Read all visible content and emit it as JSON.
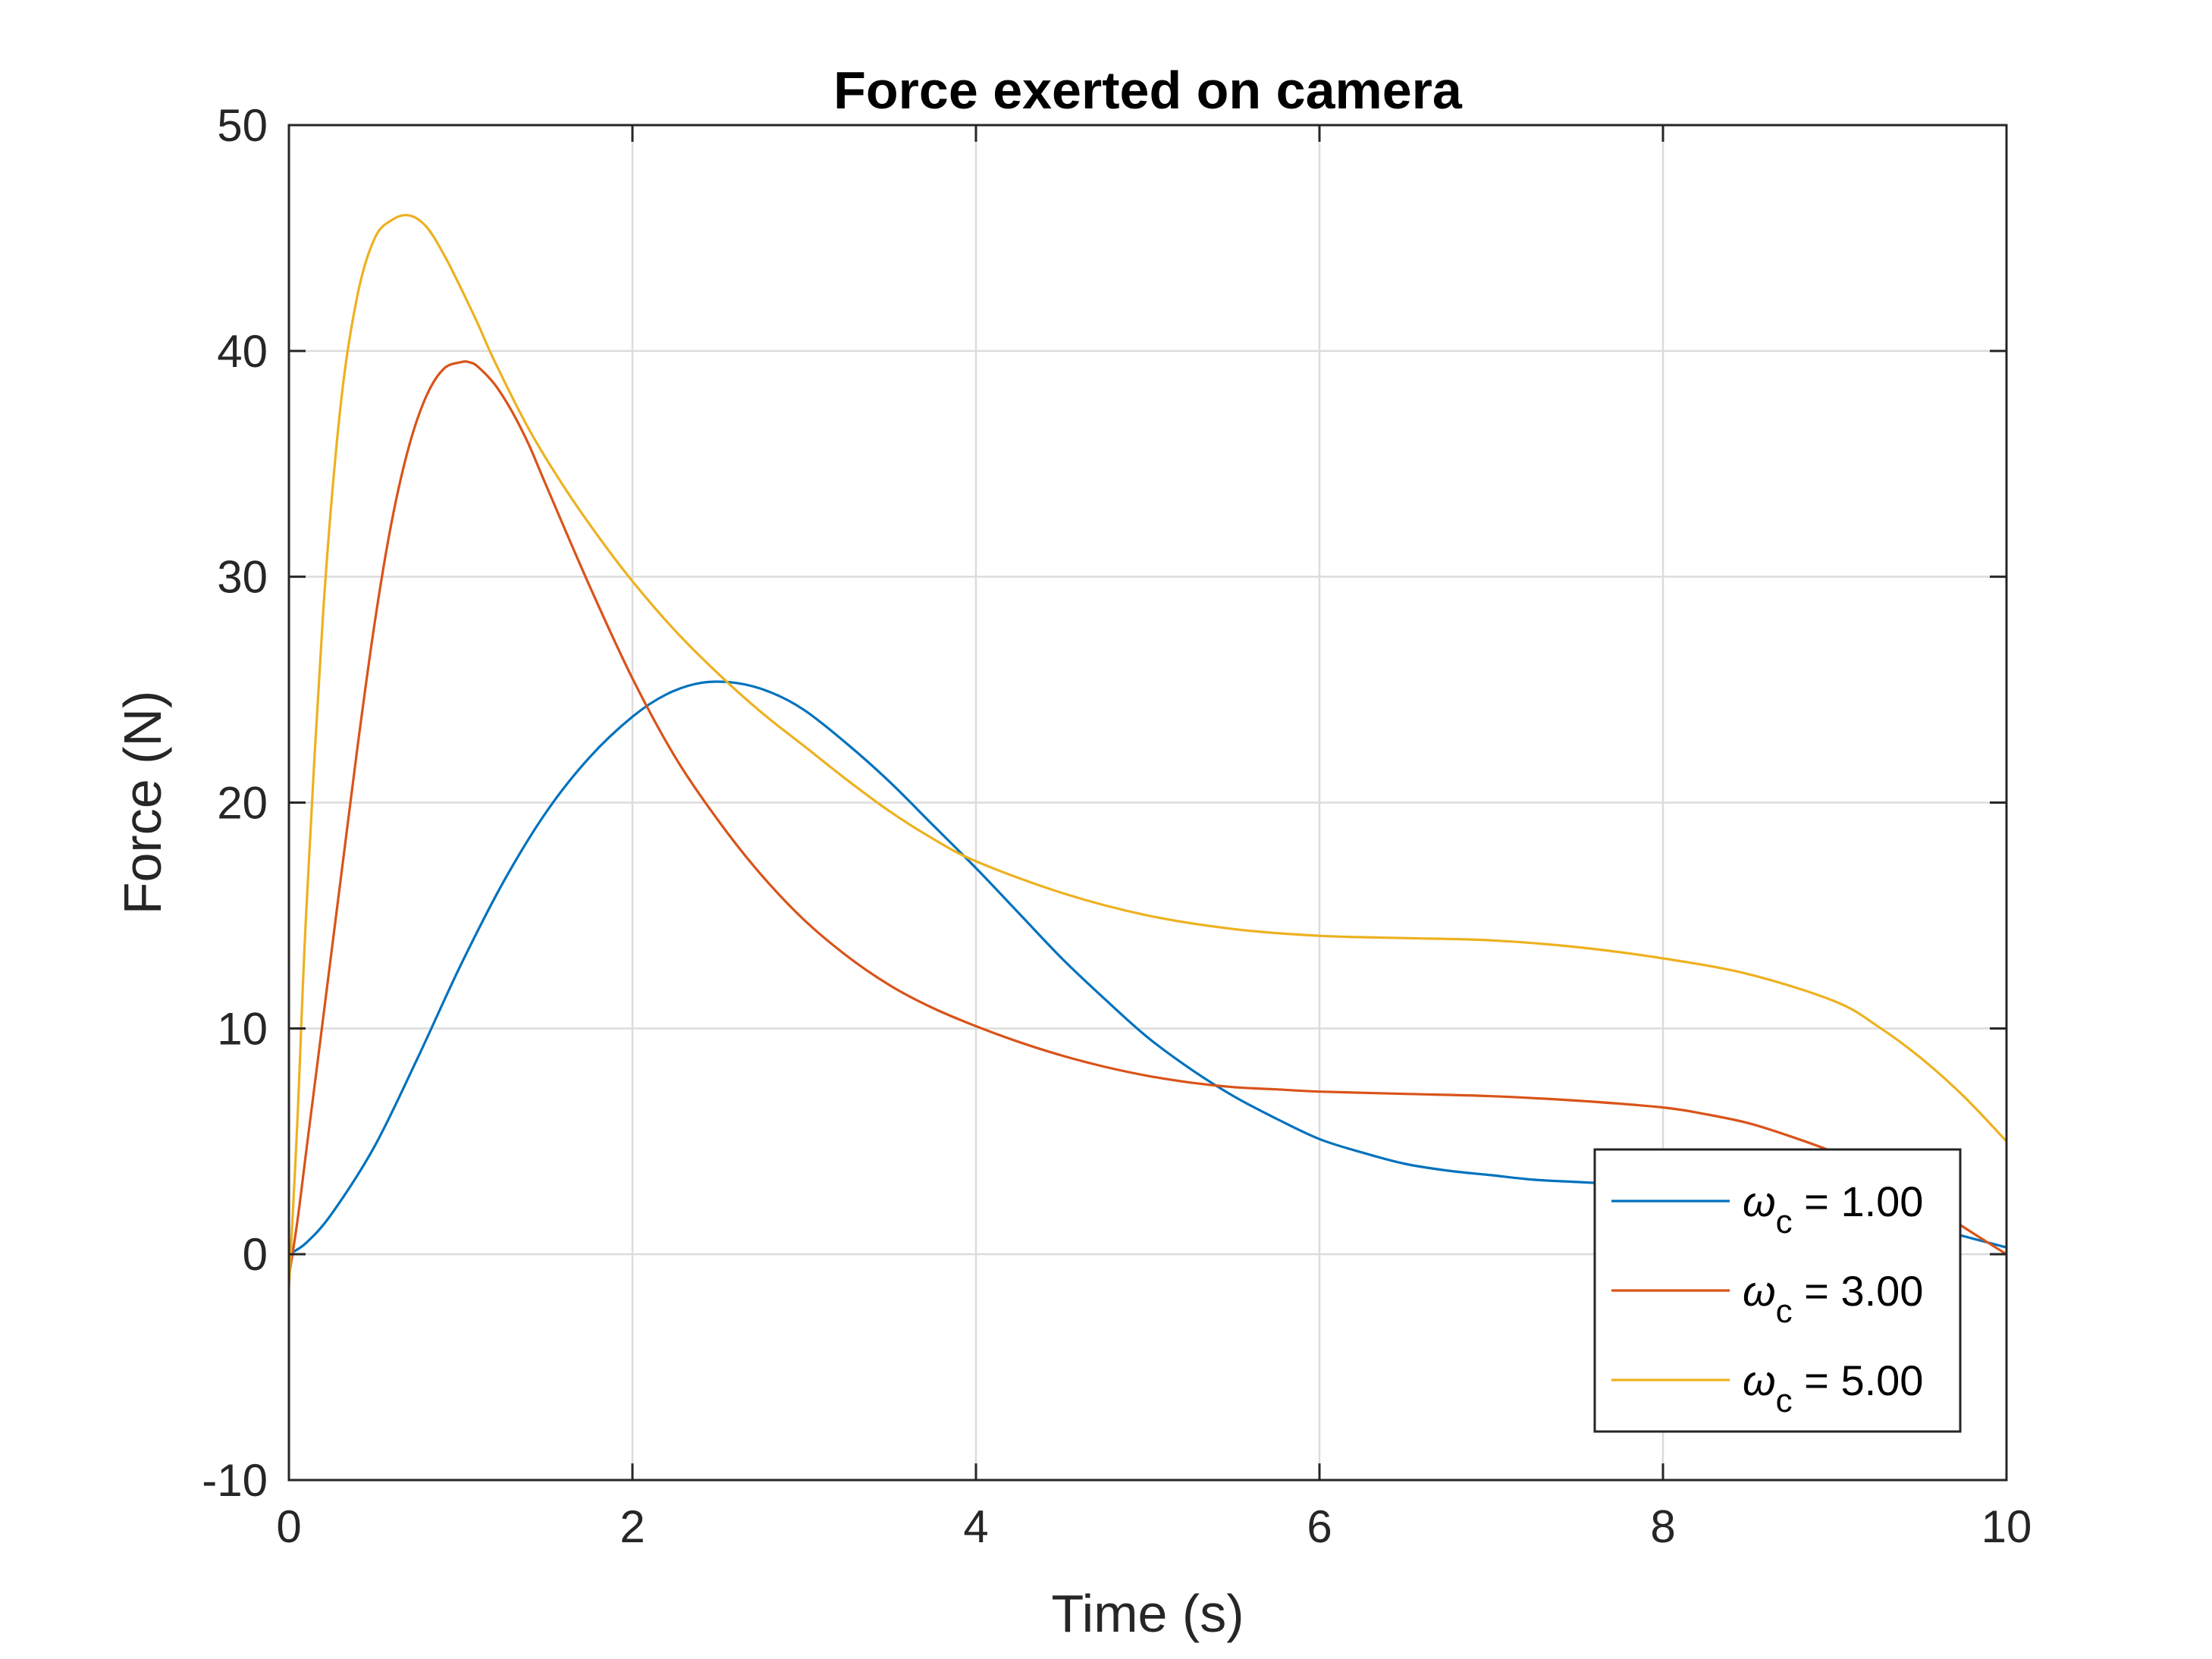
{
  "chart_data": {
    "type": "line",
    "title": "Force exerted on camera",
    "xlabel": "Time (s)",
    "ylabel": "Force (N)",
    "xlim": [
      0,
      10
    ],
    "ylim": [
      -10,
      50
    ],
    "xticks": [
      0,
      2,
      4,
      6,
      8,
      10
    ],
    "yticks": [
      -10,
      0,
      10,
      20,
      30,
      40,
      50
    ],
    "grid": true,
    "legend_position": "bottom-right",
    "series": [
      {
        "name": "ωc = 1.00",
        "legend_symbol": "ω",
        "legend_subscript": "c",
        "legend_value": " = 1.00",
        "color": "#0072BD",
        "x": [
          0,
          0.1,
          0.25,
          0.5,
          0.75,
          1.0,
          1.25,
          1.5,
          1.75,
          2.0,
          2.2,
          2.4,
          2.6,
          2.8,
          3.0,
          3.25,
          3.5,
          3.75,
          4.0,
          4.25,
          4.5,
          4.75,
          5.0,
          5.25,
          5.5,
          5.75,
          6.0,
          6.25,
          6.5,
          6.75,
          7.0,
          7.25,
          7.5,
          7.75,
          8.0,
          8.25,
          8.5,
          8.75,
          9.0,
          9.25,
          9.5,
          9.75,
          10.0
        ],
        "y": [
          0,
          0.5,
          1.8,
          4.8,
          8.7,
          12.8,
          16.5,
          19.6,
          22.0,
          23.8,
          24.8,
          25.3,
          25.3,
          24.9,
          24.1,
          22.6,
          20.9,
          19.0,
          17.1,
          15.1,
          13.1,
          11.3,
          9.6,
          8.2,
          7.0,
          6.0,
          5.1,
          4.5,
          4.0,
          3.7,
          3.5,
          3.3,
          3.2,
          3.1,
          3.0,
          2.9,
          2.7,
          2.4,
          2.1,
          1.7,
          1.3,
          0.8,
          0.3
        ]
      },
      {
        "name": "ωc = 3.00",
        "legend_symbol": "ω",
        "legend_subscript": "c",
        "legend_value": " = 3.00",
        "color": "#D95319",
        "x": [
          0,
          0.05,
          0.1,
          0.2,
          0.3,
          0.4,
          0.5,
          0.6,
          0.7,
          0.8,
          0.9,
          1.0,
          1.05,
          1.1,
          1.2,
          1.3,
          1.4,
          1.5,
          1.75,
          2.0,
          2.25,
          2.5,
          2.75,
          3.0,
          3.25,
          3.5,
          3.75,
          4.0,
          4.25,
          4.5,
          4.75,
          5.0,
          5.25,
          5.5,
          5.75,
          6.0,
          6.5,
          7.0,
          7.5,
          8.0,
          8.25,
          8.5,
          8.75,
          9.0,
          9.25,
          9.5,
          9.75,
          10.0
        ],
        "y": [
          -1,
          1.5,
          4.5,
          10.5,
          16.5,
          22.5,
          28.0,
          32.5,
          35.8,
          38.0,
          39.2,
          39.5,
          39.5,
          39.3,
          38.5,
          37.3,
          35.8,
          34.0,
          29.6,
          25.5,
          22.0,
          19.2,
          16.8,
          14.8,
          13.2,
          11.9,
          10.9,
          10.1,
          9.4,
          8.8,
          8.3,
          7.9,
          7.6,
          7.4,
          7.3,
          7.2,
          7.1,
          7.0,
          6.8,
          6.5,
          6.2,
          5.8,
          5.2,
          4.5,
          3.6,
          2.5,
          1.2,
          0
        ]
      },
      {
        "name": "ωc = 5.00",
        "legend_symbol": "ω",
        "legend_subscript": "c",
        "legend_value": " = 5.00",
        "color": "#EDB120",
        "x": [
          0,
          0.05,
          0.1,
          0.2,
          0.3,
          0.4,
          0.5,
          0.6,
          0.7,
          0.8,
          0.9,
          1.0,
          1.1,
          1.2,
          1.4,
          1.6,
          1.8,
          2.0,
          2.25,
          2.5,
          2.75,
          3.0,
          3.25,
          3.5,
          3.75,
          4.0,
          4.5,
          5.0,
          5.5,
          6.0,
          6.5,
          7.0,
          7.5,
          8.0,
          8.5,
          9.0,
          9.25,
          9.5,
          9.75,
          10.0
        ],
        "y": [
          -1.5,
          6,
          15,
          28.5,
          37.5,
          42.5,
          45.0,
          45.8,
          46.0,
          45.5,
          44.3,
          42.8,
          41.2,
          39.5,
          36.5,
          34.0,
          31.8,
          29.8,
          27.6,
          25.7,
          24.0,
          22.5,
          21.0,
          19.6,
          18.4,
          17.4,
          16.0,
          15.0,
          14.4,
          14.1,
          14.0,
          13.9,
          13.6,
          13.1,
          12.4,
          11.2,
          10.1,
          8.7,
          7.0,
          5.0
        ]
      }
    ]
  }
}
